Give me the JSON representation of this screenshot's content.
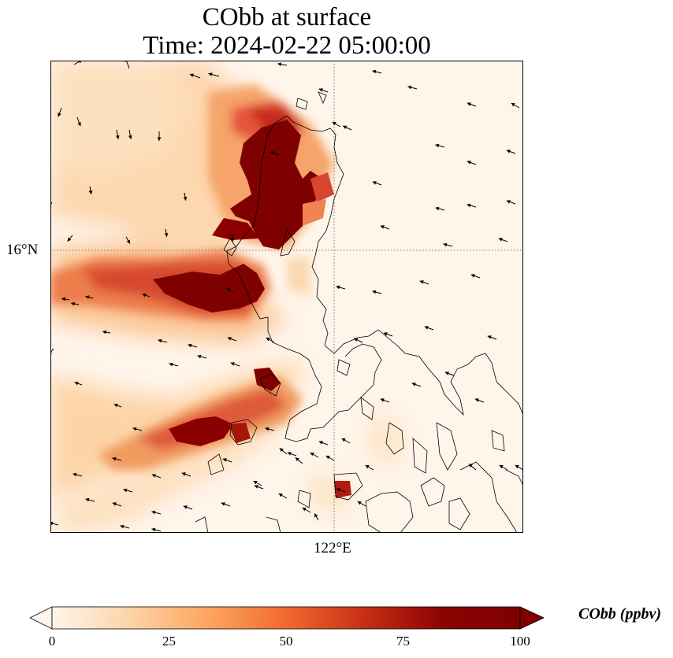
{
  "title": {
    "line1": "CObb at surface",
    "line2": "Time: 2024-02-22 05:00:00"
  },
  "axes": {
    "lat_tick": "16°N",
    "lon_tick": "122°E"
  },
  "colorbar": {
    "label": "CObb (ppbv)",
    "min": 0,
    "max": 100,
    "ticks": [
      "0",
      "25",
      "50",
      "75",
      "100"
    ],
    "extend": "both",
    "colormap": [
      "#fff5eb",
      "#fdd3a8",
      "#fca65f",
      "#f06a2e",
      "#c72f13",
      "#8a0303",
      "#7f0000"
    ]
  },
  "map": {
    "colormap_name": "OrRd-like",
    "gridlines": "dotted",
    "coastline_color": "#000000",
    "wind_vectors": "black arrows"
  }
}
